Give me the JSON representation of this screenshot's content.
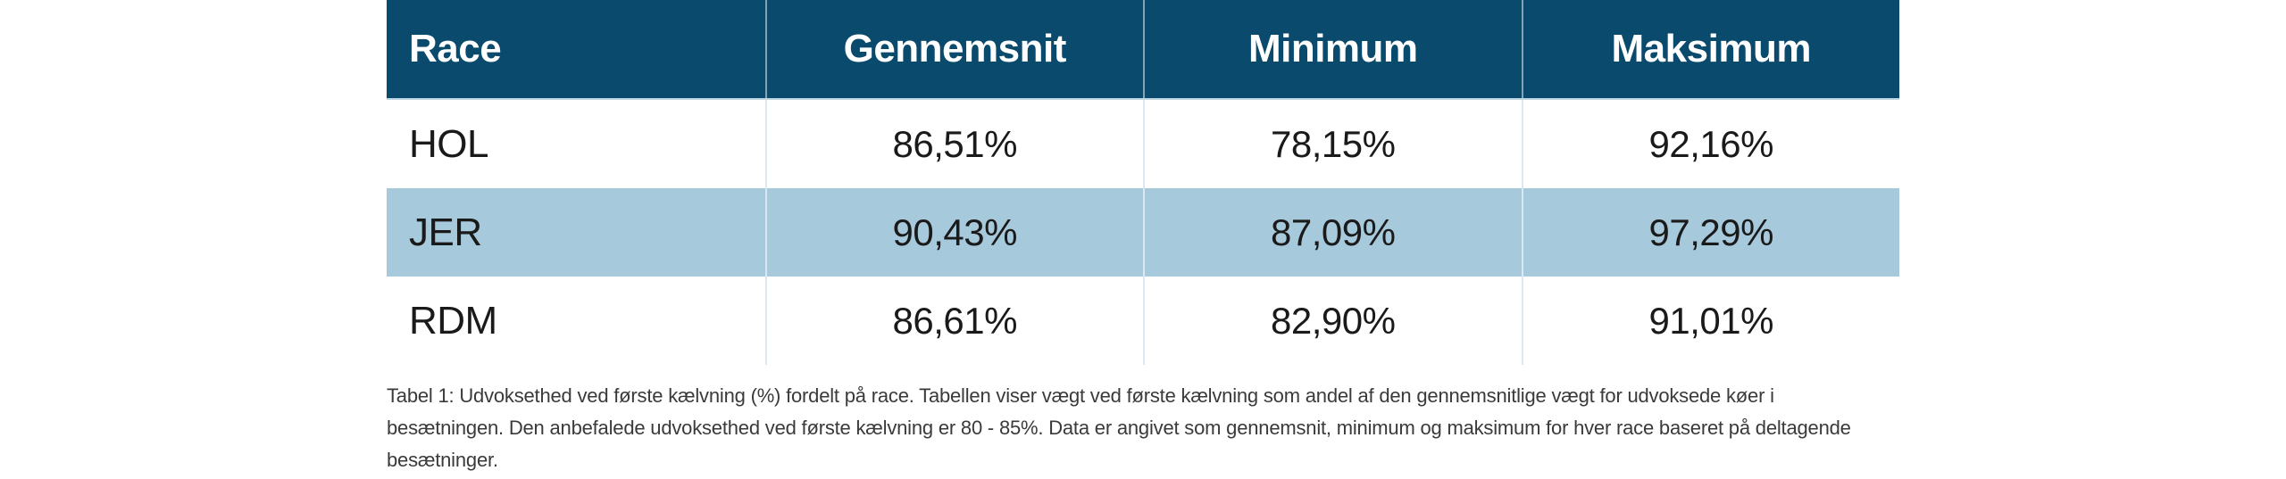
{
  "table": {
    "headers": [
      "Race",
      "Gennemsnit",
      "Minimum",
      "Maksimum"
    ],
    "rows": [
      {
        "race": "HOL",
        "gennemsnit": "86,51%",
        "minimum": "78,15%",
        "maksimum": "92,16%",
        "highlighted": false
      },
      {
        "race": "JER",
        "gennemsnit": "90,43%",
        "minimum": "87,09%",
        "maksimum": "97,29%",
        "highlighted": true
      },
      {
        "race": "RDM",
        "gennemsnit": "86,61%",
        "minimum": "82,90%",
        "maksimum": "91,01%",
        "highlighted": false
      }
    ]
  },
  "caption": {
    "lines": [
      "Tabel 1: Udvoksethed ved første kælvning (%) fordelt på race. Tabellen viser vægt ved første kælvning som andel af den gennemsnitlige vægt for udvoksede køer i",
      "besætningen. Den anbefalede udvoksethed ved første kælvning er 80 - 85%. Data er angivet som gennemsnit, minimum og maksimum for hver race baseret på deltagende",
      "besætninger."
    ]
  },
  "colors": {
    "header_background": "#0A4A6C",
    "header_text": "#FFFFFF",
    "highlight_row_background": "#A7C9DC",
    "body_text": "#1A1A1A",
    "caption_text": "#3A3A3B",
    "grid_line": "#D9E8F1",
    "page_background": "#FFFFFF"
  },
  "chart_data": {
    "type": "table",
    "title": "Tabel 1: Udvoksethed ved første kælvning (%) fordelt på race",
    "columns": [
      "Race",
      "Gennemsnit",
      "Minimum",
      "Maksimum"
    ],
    "rows": [
      [
        "HOL",
        "86,51%",
        "78,15%",
        "92,16%"
      ],
      [
        "JER",
        "90,43%",
        "87,09%",
        "97,29%"
      ],
      [
        "RDM",
        "86,61%",
        "82,90%",
        "91,01%"
      ]
    ]
  }
}
